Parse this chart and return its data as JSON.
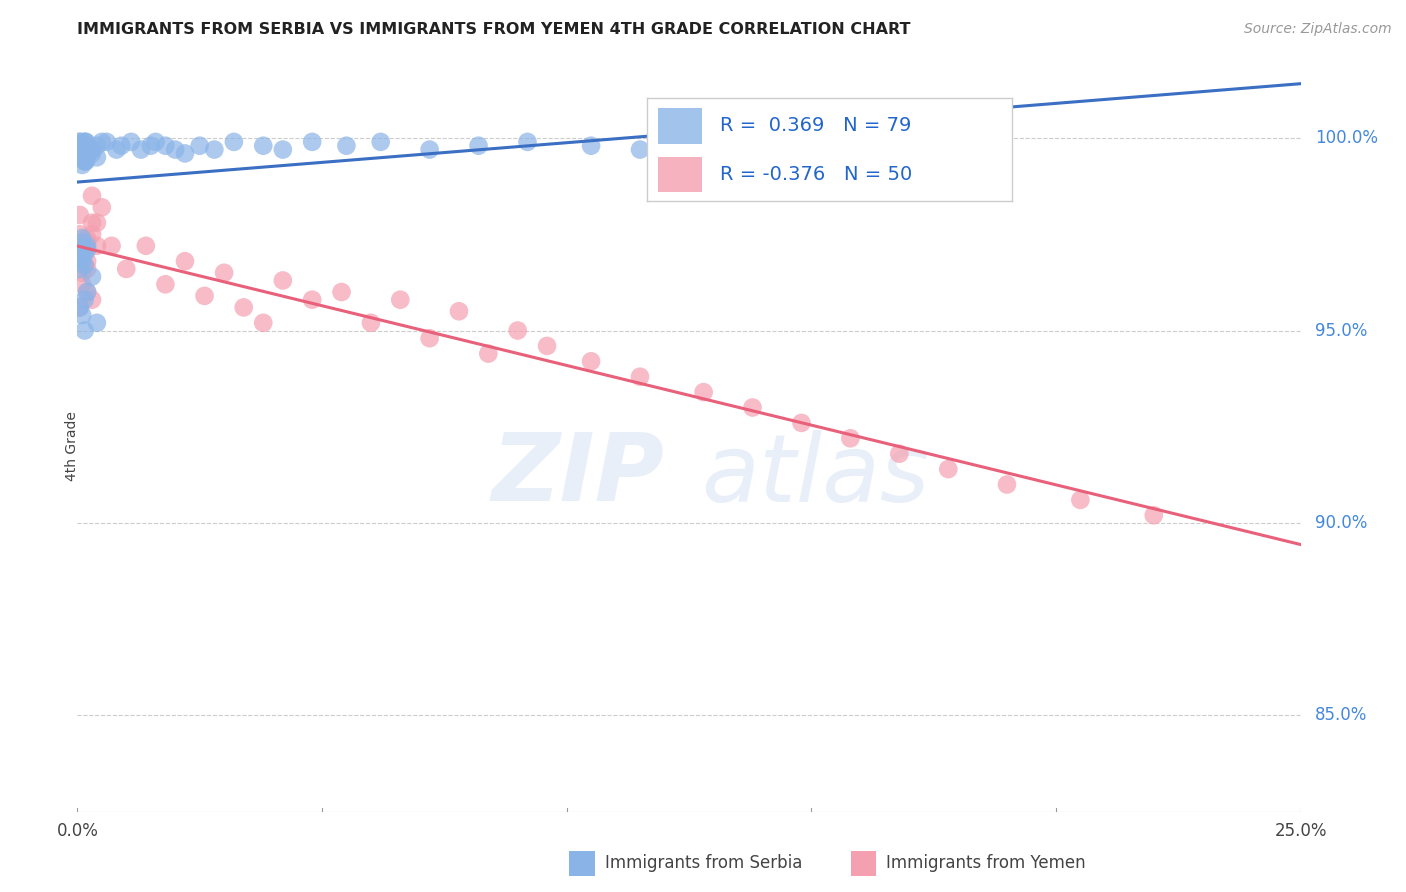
{
  "title": "IMMIGRANTS FROM SERBIA VS IMMIGRANTS FROM YEMEN 4TH GRADE CORRELATION CHART",
  "source": "Source: ZipAtlas.com",
  "ylabel": "4th Grade",
  "ytick_labels": [
    "85.0%",
    "90.0%",
    "95.0%",
    "100.0%"
  ],
  "ytick_values": [
    0.85,
    0.9,
    0.95,
    1.0
  ],
  "xlim": [
    0.0,
    0.25
  ],
  "ylim": [
    0.825,
    1.015
  ],
  "legend_r1": "R =  0.369   N = 79",
  "legend_r2": "R = -0.376   N = 50",
  "serbia_color": "#8ab4e8",
  "yemen_color": "#f4a0b0",
  "serbia_line_color": "#3a6fc4",
  "yemen_line_color": "#e8607a",
  "watermark_zip": "ZIP",
  "watermark_atlas": "atlas",
  "serbia_x": [
    0.0005,
    0.001,
    0.0015,
    0.002,
    0.0008,
    0.0012,
    0.0018,
    0.0025,
    0.001,
    0.0005,
    0.0015,
    0.002,
    0.0008,
    0.0022,
    0.0012,
    0.0018,
    0.003,
    0.0015,
    0.0005,
    0.001,
    0.002,
    0.0015,
    0.001,
    0.0005,
    0.004,
    0.0015,
    0.001,
    0.002,
    0.0005,
    0.0015,
    0.003,
    0.001,
    0.0015,
    0.0005,
    0.002,
    0.001,
    0.0015,
    0.0005,
    0.003,
    0.001,
    0.002,
    0.0015,
    0.0005,
    0.001,
    0.004,
    0.0015,
    0.001,
    0.002,
    0.0005,
    0.0015,
    0.005,
    0.003,
    0.004,
    0.006,
    0.008,
    0.009,
    0.011,
    0.013,
    0.015,
    0.016,
    0.018,
    0.02,
    0.022,
    0.025,
    0.028,
    0.032,
    0.038,
    0.042,
    0.048,
    0.055,
    0.062,
    0.072,
    0.082,
    0.092,
    0.105,
    0.115,
    0.125,
    0.135,
    0.145
  ],
  "serbia_y": [
    0.998,
    0.997,
    0.999,
    0.996,
    0.998,
    0.995,
    0.999,
    0.997,
    0.996,
    0.998,
    0.999,
    0.997,
    0.995,
    0.996,
    0.998,
    0.994,
    0.997,
    0.996,
    0.999,
    0.995,
    0.997,
    0.994,
    0.996,
    0.998,
    0.995,
    0.997,
    0.993,
    0.996,
    0.999,
    0.994,
    0.996,
    0.998,
    0.994,
    0.996,
    0.972,
    0.968,
    0.97,
    0.966,
    0.964,
    0.973,
    0.96,
    0.958,
    0.956,
    0.954,
    0.952,
    0.95,
    0.974,
    0.971,
    0.969,
    0.967,
    0.999,
    0.997,
    0.998,
    0.999,
    0.997,
    0.998,
    0.999,
    0.997,
    0.998,
    0.999,
    0.998,
    0.997,
    0.996,
    0.998,
    0.997,
    0.999,
    0.998,
    0.997,
    0.999,
    0.998,
    0.999,
    0.997,
    0.998,
    0.999,
    0.998,
    0.997,
    0.996,
    0.995,
    0.999
  ],
  "yemen_x": [
    0.0005,
    0.001,
    0.0015,
    0.002,
    0.003,
    0.001,
    0.002,
    0.003,
    0.0005,
    0.002,
    0.004,
    0.001,
    0.003,
    0.0005,
    0.002,
    0.005,
    0.003,
    0.001,
    0.002,
    0.004,
    0.007,
    0.01,
    0.014,
    0.018,
    0.022,
    0.026,
    0.03,
    0.034,
    0.038,
    0.042,
    0.048,
    0.054,
    0.06,
    0.066,
    0.072,
    0.078,
    0.084,
    0.09,
    0.096,
    0.105,
    0.115,
    0.128,
    0.138,
    0.148,
    0.158,
    0.168,
    0.178,
    0.19,
    0.205,
    0.22
  ],
  "yemen_y": [
    0.975,
    0.97,
    0.972,
    0.968,
    0.978,
    0.962,
    0.96,
    0.958,
    0.956,
    0.966,
    0.972,
    0.965,
    0.975,
    0.98,
    0.973,
    0.982,
    0.985,
    0.968,
    0.974,
    0.978,
    0.972,
    0.966,
    0.972,
    0.962,
    0.968,
    0.959,
    0.965,
    0.956,
    0.952,
    0.963,
    0.958,
    0.96,
    0.952,
    0.958,
    0.948,
    0.955,
    0.944,
    0.95,
    0.946,
    0.942,
    0.938,
    0.934,
    0.93,
    0.926,
    0.922,
    0.918,
    0.914,
    0.91,
    0.906,
    0.902
  ]
}
